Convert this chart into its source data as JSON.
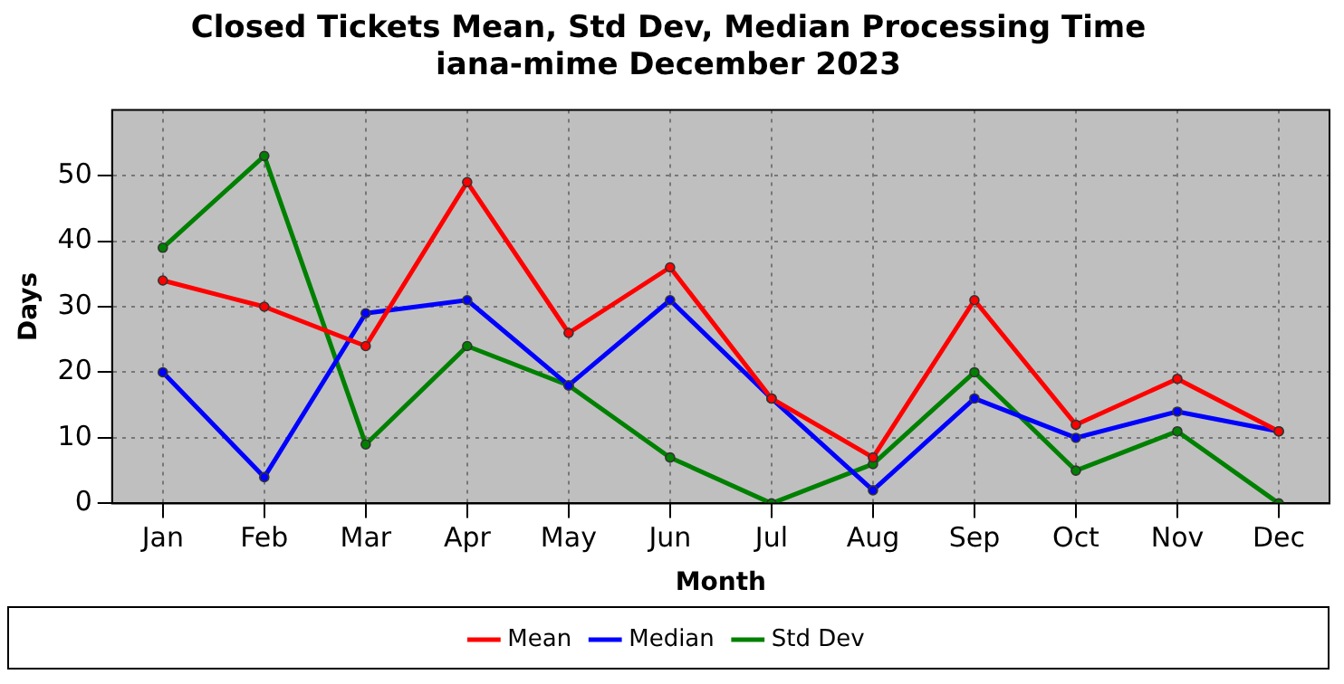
{
  "chart_data": {
    "type": "line",
    "title": "Closed Tickets Mean, Std Dev, Median Processing Time\niana-mime December 2023",
    "xlabel": "Month",
    "ylabel": "Days",
    "categories": [
      "Jan",
      "Feb",
      "Mar",
      "Apr",
      "May",
      "Jun",
      "Jul",
      "Aug",
      "Sep",
      "Oct",
      "Nov",
      "Dec"
    ],
    "series": [
      {
        "name": "Mean",
        "color": "#ff0000",
        "values": [
          34,
          30,
          24,
          49,
          26,
          36,
          16,
          7,
          31,
          12,
          19,
          11
        ]
      },
      {
        "name": "Median",
        "color": "#0000ff",
        "values": [
          20,
          4,
          29,
          31,
          18,
          31,
          16,
          2,
          16,
          10,
          14,
          11
        ]
      },
      {
        "name": "Std Dev",
        "color": "#008000",
        "values": [
          39,
          53,
          9,
          24,
          18,
          7,
          0,
          6,
          20,
          5,
          11,
          0
        ]
      }
    ],
    "ylim": [
      0,
      60
    ],
    "yticks": [
      0,
      10,
      20,
      30,
      40,
      50
    ],
    "grid": true,
    "legend": "bottom",
    "marker": "circle",
    "line_style": "solid"
  }
}
